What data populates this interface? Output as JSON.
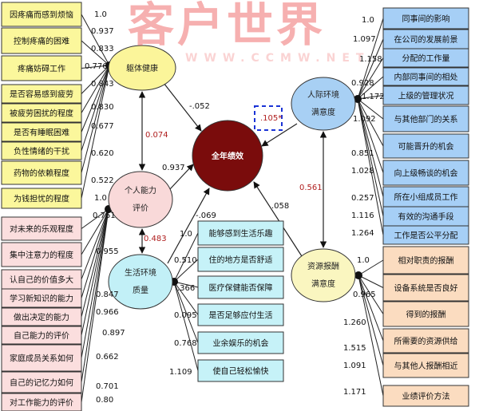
{
  "watermark": {
    "main": "客户世界",
    "url": "WWW.CCMW.NET"
  },
  "colors": {
    "physical": "#fbf59a",
    "ability": "#f9d9d9",
    "living": "#c2f0f7",
    "performance": "#7a0c0c",
    "interpersonal": "#a8d0f4",
    "resource": "#faf6c0",
    "box_yellow": "#fbf79c",
    "box_pink": "#fbdede",
    "box_cyan": "#c6f2f8",
    "box_blue": "#a6cff6",
    "box_orange": "#fbdcc0",
    "coef_red": "#b02020",
    "dashed": "#1a33d6"
  },
  "latents": {
    "physical": [
      "躯体健康"
    ],
    "ability": [
      "个人能力",
      "评价"
    ],
    "living": [
      "生活环境",
      "质量"
    ],
    "performance": [
      "全年绩效"
    ],
    "interpersonal": [
      "人际环境",
      "满意度"
    ],
    "resource": [
      "资源报酬",
      "满意度"
    ]
  },
  "physical_items": [
    {
      "label": "因疼痛而感到烦恼",
      "loading": "1.0"
    },
    {
      "label": "控制疼痛的困难",
      "loading": "0.937"
    },
    {
      "label": "疼痛妨碍工作",
      "loading": "0.833"
    },
    {
      "label": "是否容易感到疲劳",
      "loading": "0.776"
    },
    {
      "label": "被疲劳困扰的程度",
      "loading": "0.843"
    },
    {
      "label": "是否有睡眠困难",
      "loading": "0.830"
    },
    {
      "label": "负性情绪的干扰",
      "loading": "0.677"
    },
    {
      "label": "药物的依赖程度",
      "loading": "0.620"
    },
    {
      "label": "为钱担忧的程度",
      "loading": "0.522"
    }
  ],
  "ability_items": [
    {
      "label": "对未来的乐观程度",
      "loading": "1.0"
    },
    {
      "label": "集中注意力的程度",
      "loading": "0.761"
    },
    {
      "label": "认自己的价值多大",
      "loading": "0.955"
    },
    {
      "label": "学习新知识的能力",
      "loading": "0.847"
    },
    {
      "label": "做出决定的能力",
      "loading": "0.966"
    },
    {
      "label": "自己能力的评价",
      "loading": "0.897"
    },
    {
      "label": "家庭成员关系如何",
      "loading": "0.662"
    },
    {
      "label": "自己的记忆力如何",
      "loading": "0.701"
    },
    {
      "label": "对工作能力的评价",
      "loading": "0.80"
    }
  ],
  "living_items": [
    {
      "label": "能够感到生活乐趣",
      "loading": "1.0"
    },
    {
      "label": "住的地方是否舒适",
      "loading": "0.510"
    },
    {
      "label": "医疗保健能否保障",
      "loading": ".366"
    },
    {
      "label": "是否足够应付生活",
      "loading": "0.095"
    },
    {
      "label": "业余娱乐的机会",
      "loading": "0.768"
    },
    {
      "label": "使自己轻松愉快",
      "loading": "1.109"
    }
  ],
  "interpersonal_items": [
    {
      "label": "同事间的影响",
      "loading": "1.0"
    },
    {
      "label": "在公司的发展前景",
      "loading": "1.097"
    },
    {
      "label": "分配的工作量",
      "loading": "1.158"
    },
    {
      "label": "内部同事间的相处",
      "loading": "0.928"
    },
    {
      "label": "上级的管理状况",
      "loading": "1.172"
    },
    {
      "label": "与其他部门的关系",
      "loading": "1.092"
    },
    {
      "label": "可能晋升的机会",
      "loading": "0.851"
    },
    {
      "label": "向上级畅谈的机会",
      "loading": "1.028"
    },
    {
      "label": "所在小组成员工作",
      "loading": "0.257"
    },
    {
      "label": "有效的沟通手段",
      "loading": "1.116"
    },
    {
      "label": "工作是否公平分配",
      "loading": "1.264"
    }
  ],
  "resource_items": [
    {
      "label": "相对职责的报酬",
      "loading": "1.0"
    },
    {
      "label": "设备系统是否良好",
      "loading": "0.965"
    },
    {
      "label": "得到的报酬",
      "loading": "1.260"
    },
    {
      "label": "所需要的资源供给",
      "loading": "1.515"
    },
    {
      "label": "与其他人报酬相近",
      "loading": "1.091"
    },
    {
      "label": "业绩评价方法",
      "loading": "1.171"
    }
  ],
  "paths": {
    "physical_to_performance": "-.052",
    "ability_to_performance": "0.937",
    "living_to_performance": "-.069",
    "resource_to_performance": ".058",
    "interpersonal_to_performance": ".105*",
    "physical_ability_cov": "0.074",
    "ability_living_cov": "0.483",
    "interpersonal_resource_cov": "0.561"
  }
}
